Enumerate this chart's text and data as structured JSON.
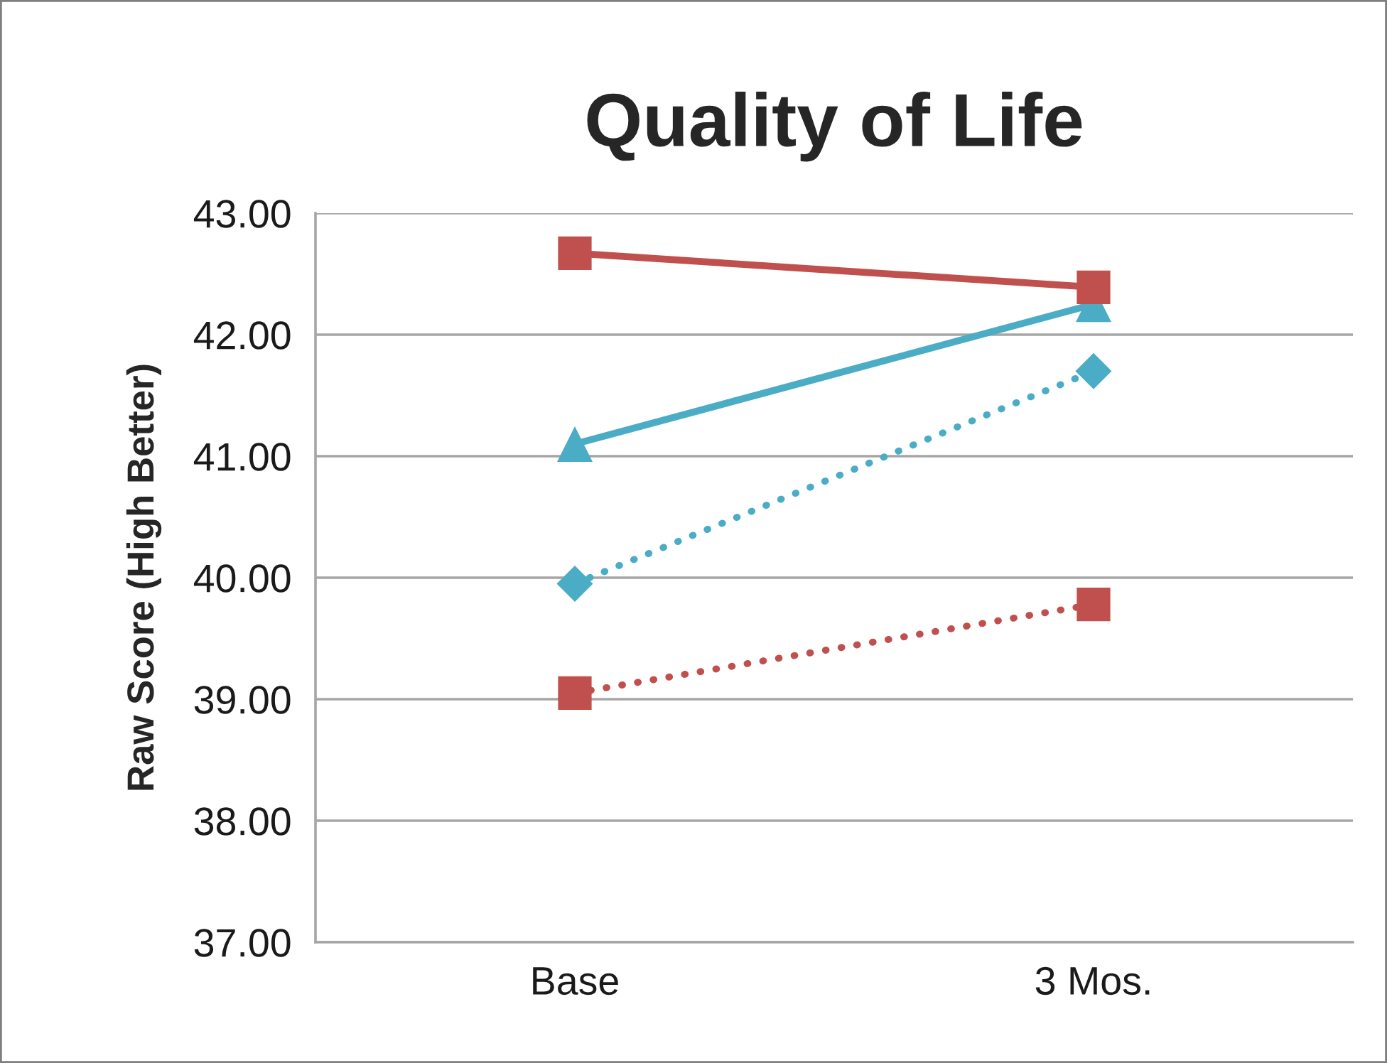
{
  "chart_data": {
    "type": "line",
    "title": "Quality of Life",
    "ylabel": "Raw Score (High Better)",
    "categories": [
      "Base",
      "3 Mos."
    ],
    "series": [
      {
        "color": "#4bacc6",
        "values": [
          41.1,
          42.25
        ],
        "marker": "triangle",
        "line_style": "solid"
      },
      {
        "color": "#c0504d",
        "values": [
          42.67,
          42.39
        ],
        "marker": "square",
        "line_style": "solid"
      },
      {
        "color": "#4bacc6",
        "values": [
          39.95,
          41.7
        ],
        "marker": "diamond",
        "line_style": "dotted"
      },
      {
        "color": "#c0504d",
        "values": [
          39.05,
          39.78
        ],
        "marker": "square",
        "line_style": "dotted"
      }
    ],
    "ylim": [
      37,
      43
    ],
    "yticks": [
      {
        "value": 37,
        "label": "37.00"
      },
      {
        "value": 38,
        "label": "38.00"
      },
      {
        "value": 39,
        "label": "39.00"
      },
      {
        "value": 40,
        "label": "40.00"
      },
      {
        "value": 41,
        "label": "41.00"
      },
      {
        "value": 42,
        "label": "42.00"
      },
      {
        "value": 43,
        "label": "43.00"
      }
    ],
    "grid": "y",
    "legend": false
  }
}
